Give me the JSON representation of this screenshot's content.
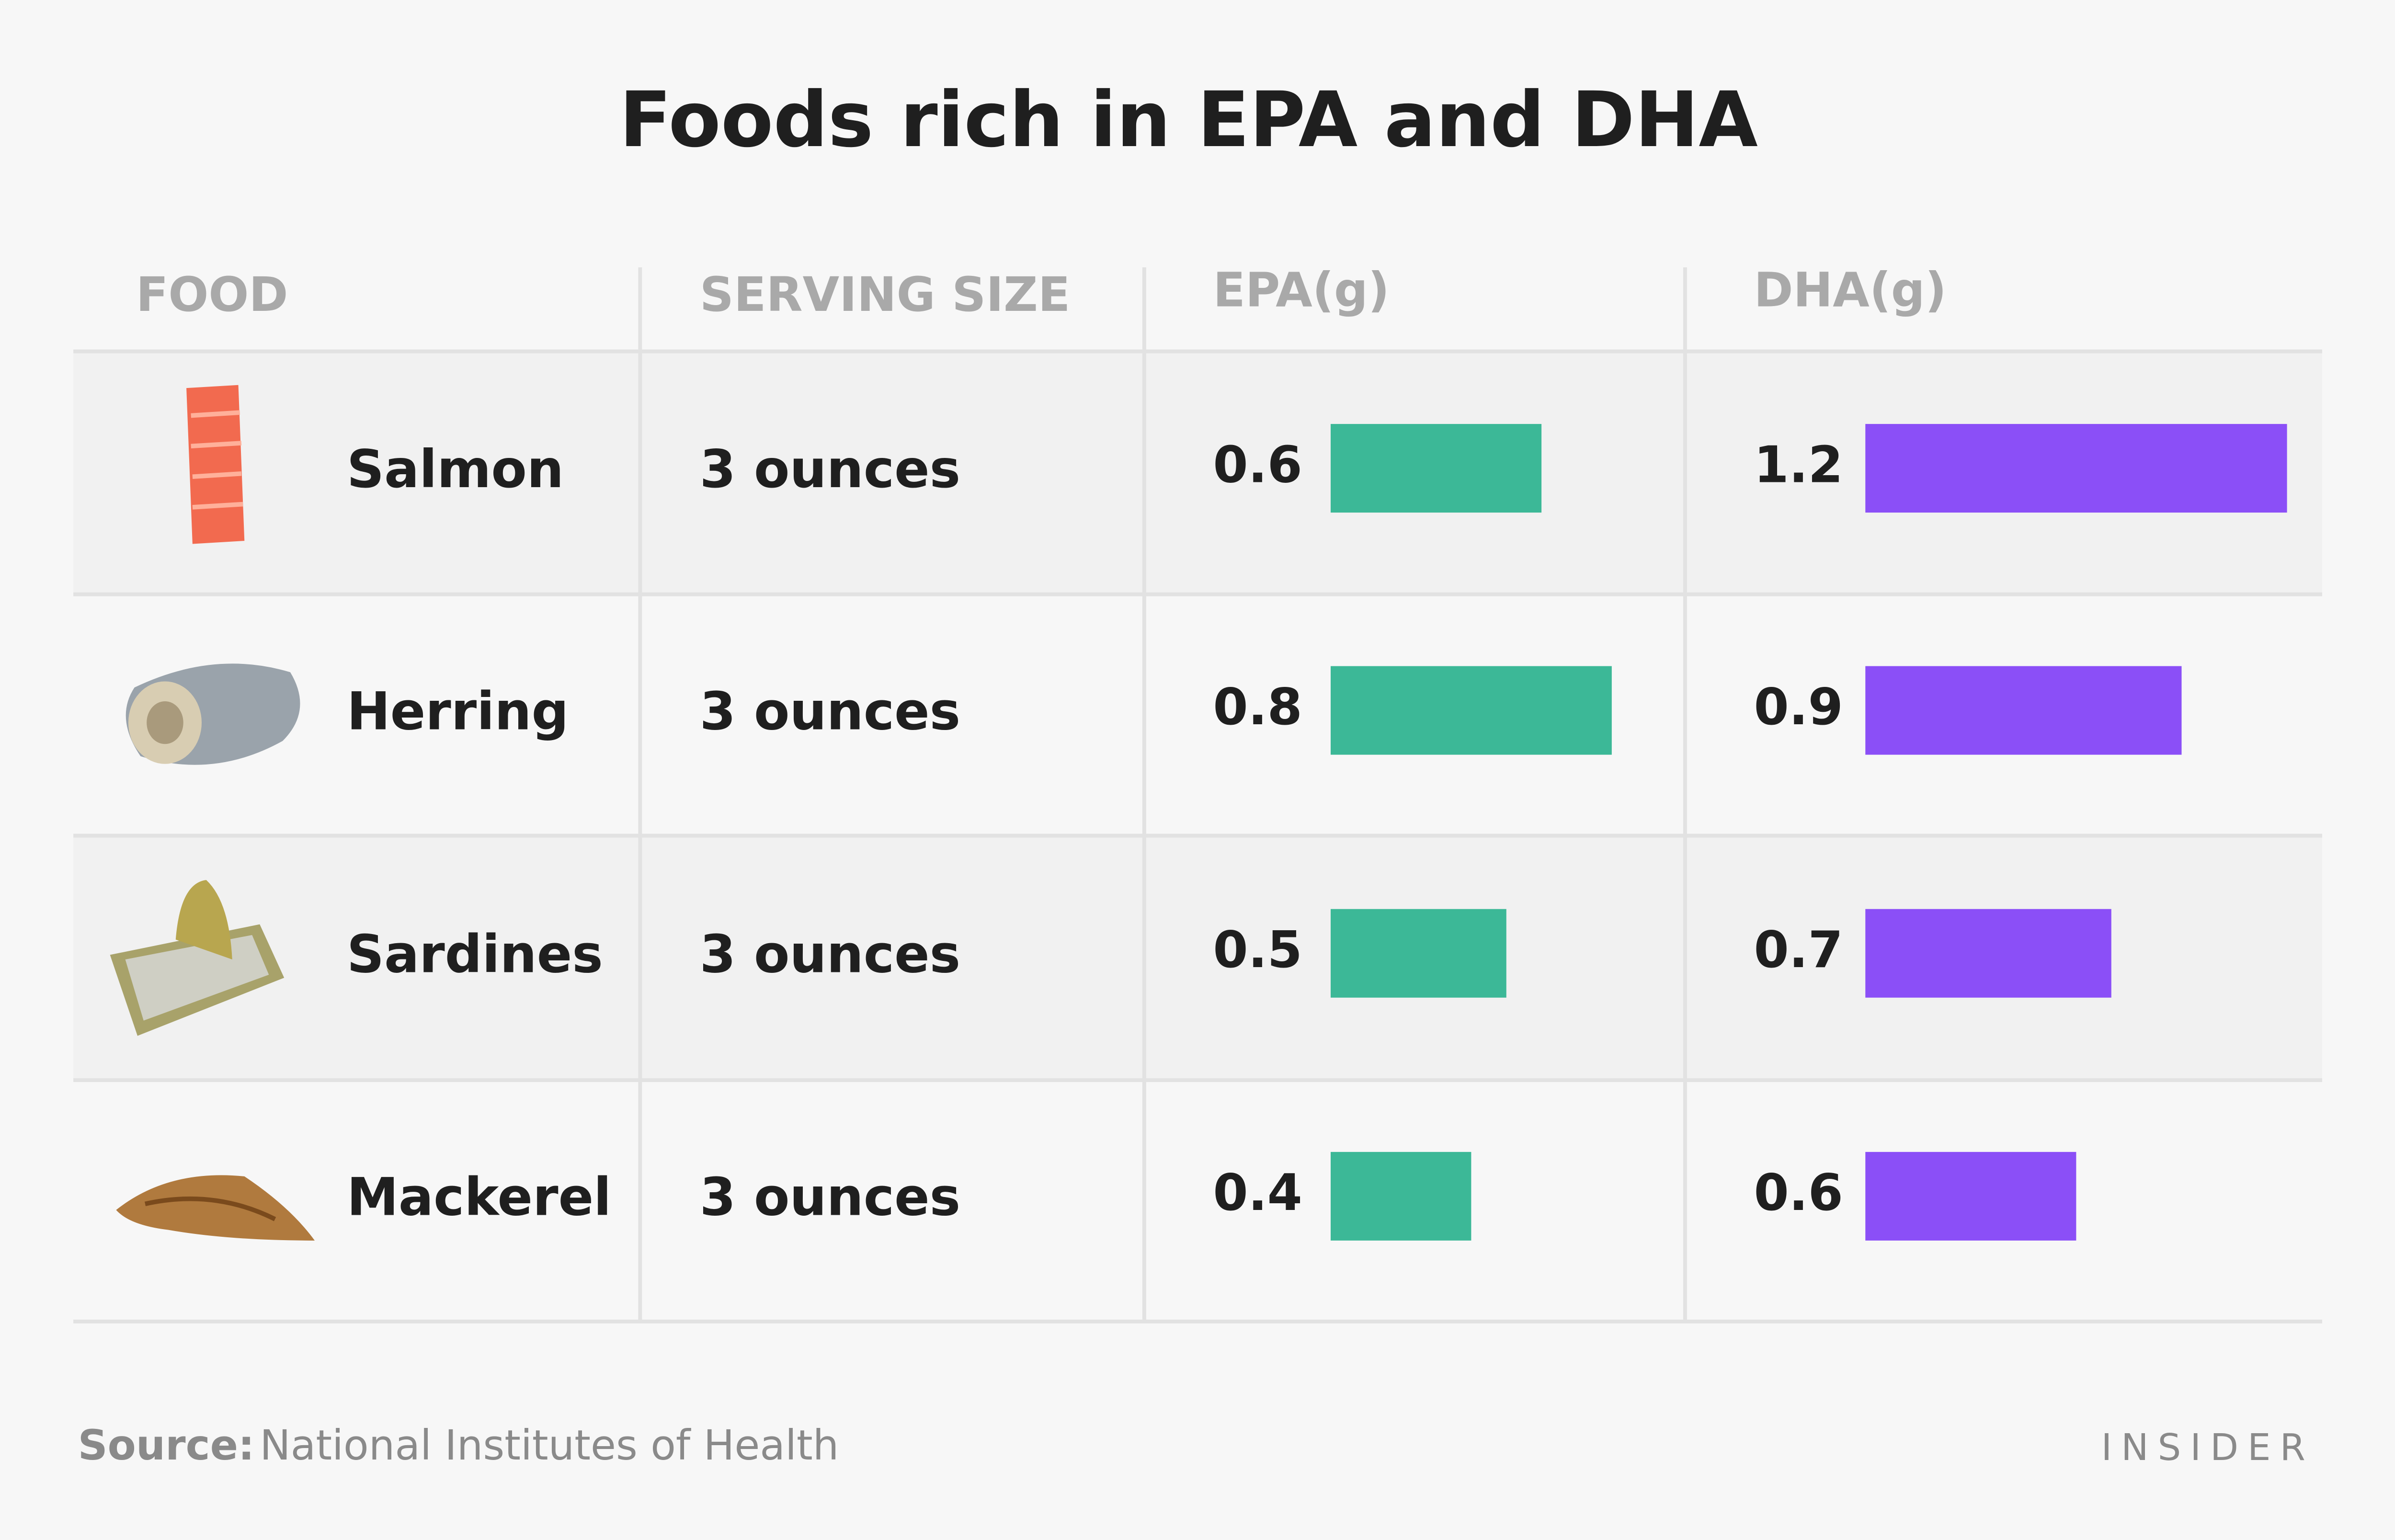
{
  "chart_data": {
    "type": "bar",
    "title": "Foods rich in EPA and DHA",
    "columns": [
      "FOOD",
      "SERVING SIZE"
    ],
    "categories": [
      "Salmon",
      "Herring",
      "Sardines",
      "Mackerel"
    ],
    "serving_sizes": [
      "3 ounces",
      "3 ounces",
      "3 ounces",
      "3 ounces"
    ],
    "series": [
      {
        "name": "EPA(g)",
        "color": "#3cb897",
        "values": [
          0.6,
          0.8,
          0.5,
          0.4
        ]
      },
      {
        "name": "DHA(g)",
        "color": "#8b4ff7",
        "values": [
          1.2,
          0.9,
          0.7,
          0.6
        ]
      }
    ],
    "source_label": "Source:",
    "source": "National Institutes of Health",
    "brand": "INSIDER"
  }
}
